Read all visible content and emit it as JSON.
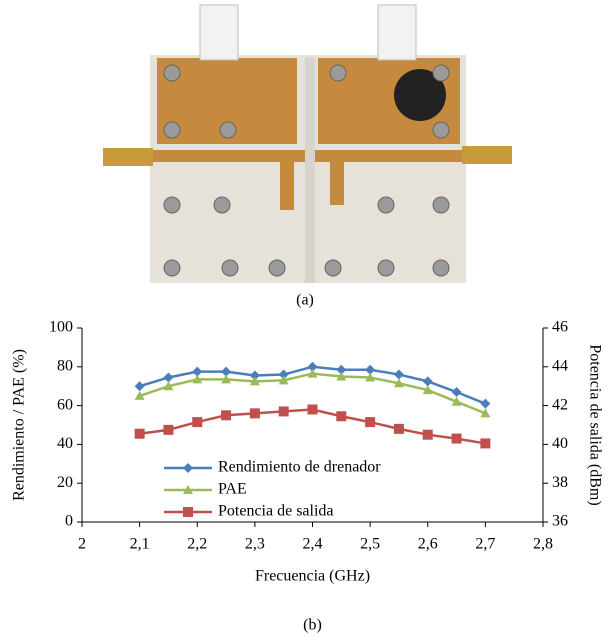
{
  "figure": {
    "caption_a": "(a)"
  },
  "chart_data": {
    "type": "line",
    "caption": "(b)",
    "x_label": "Frecuencia (GHz)",
    "y_label": "Rendimiento / PAE  (%)",
    "y2_label": "Potencia de salida (dBm)",
    "x": [
      2.1,
      2.15,
      2.2,
      2.25,
      2.3,
      2.35,
      2.4,
      2.45,
      2.5,
      2.55,
      2.6,
      2.65,
      2.7
    ],
    "xlim": [
      2,
      2.8
    ],
    "xticks": [
      2,
      {
        "value": 2.1,
        "label": "2,1"
      },
      {
        "value": 2.2,
        "label": "2,2"
      },
      {
        "value": 2.3,
        "label": "2,3"
      },
      {
        "value": 2.4,
        "label": "2,4"
      },
      {
        "value": 2.5,
        "label": "2,5"
      },
      {
        "value": 2.6,
        "label": "2,6"
      },
      {
        "value": 2.7,
        "label": "2,7"
      },
      {
        "value": 2.8,
        "label": "2,8"
      }
    ],
    "ylim": [
      0,
      100
    ],
    "yticks": [
      0,
      20,
      40,
      60,
      80,
      100
    ],
    "y2lim": [
      36,
      46
    ],
    "y2ticks": [
      36,
      38,
      40,
      42,
      44,
      46
    ],
    "series": [
      {
        "name": "Rendimiento de drenador",
        "color": "#4a7ebb",
        "marker": "diamond",
        "values": [
          70,
          74.5,
          77.5,
          77.5,
          75.5,
          76,
          80,
          78.5,
          78.5,
          76,
          72.5,
          67,
          61
        ]
      },
      {
        "name": "PAE",
        "color": "#9bbb59",
        "marker": "triangle",
        "values": [
          65,
          70,
          73.5,
          73.5,
          72.5,
          73,
          76.5,
          75,
          74.5,
          71.5,
          68,
          62,
          56
        ]
      },
      {
        "name": "Potencia de salida",
        "color": "#c0504d",
        "marker": "square",
        "axis": "y2",
        "values": [
          40.55,
          40.75,
          41.15,
          41.5,
          41.6,
          41.7,
          41.8,
          41.45,
          41.15,
          40.8,
          40.5,
          40.3,
          40.05
        ]
      }
    ]
  }
}
